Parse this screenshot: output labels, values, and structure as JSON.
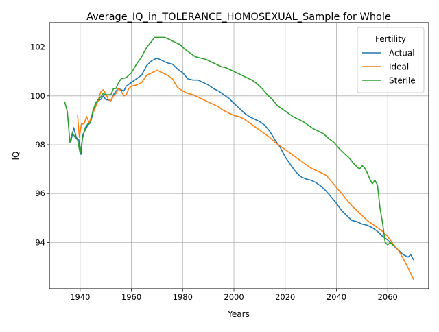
{
  "chart_data": {
    "type": "line",
    "title": "Average_IQ_in_TOLERANCE_HOMOSEXUAL_Sample for Whole",
    "xlabel": "Years",
    "ylabel": "IQ",
    "xlim": [
      1928,
      2076
    ],
    "ylim": [
      92.1,
      103.0
    ],
    "xticks": [
      1940,
      1960,
      1980,
      2000,
      2020,
      2040,
      2060
    ],
    "yticks": [
      94,
      96,
      98,
      100,
      102
    ],
    "grid": true,
    "legend": {
      "title": "Fertility",
      "position": "top-right"
    },
    "series": [
      {
        "name": "Actual",
        "color": "#1f77b4",
        "points": [
          [
            1936.5,
            98.2
          ],
          [
            1937.5,
            98.7
          ],
          [
            1938.5,
            98.3
          ],
          [
            1939.5,
            98.2
          ],
          [
            1940.3,
            97.6
          ],
          [
            1941,
            98.4
          ],
          [
            1942,
            98.6
          ],
          [
            1943,
            98.8
          ],
          [
            1944,
            98.9
          ],
          [
            1945,
            99.3
          ],
          [
            1946,
            99.6
          ],
          [
            1947,
            99.8
          ],
          [
            1948,
            99.85
          ],
          [
            1949,
            100.0
          ],
          [
            1950,
            99.85
          ],
          [
            1952,
            99.8
          ],
          [
            1953,
            100.05
          ],
          [
            1954,
            100.2
          ],
          [
            1955,
            100.3
          ],
          [
            1956,
            100.25
          ],
          [
            1957,
            100.2
          ],
          [
            1958,
            100.4
          ],
          [
            1960,
            100.55
          ],
          [
            1962,
            100.7
          ],
          [
            1964,
            100.85
          ],
          [
            1966,
            101.25
          ],
          [
            1968,
            101.45
          ],
          [
            1970,
            101.55
          ],
          [
            1972,
            101.45
          ],
          [
            1974,
            101.35
          ],
          [
            1976,
            101.3
          ],
          [
            1978,
            101.1
          ],
          [
            1980,
            100.95
          ],
          [
            1982,
            100.7
          ],
          [
            1984,
            100.65
          ],
          [
            1986,
            100.65
          ],
          [
            1988,
            100.55
          ],
          [
            1990,
            100.45
          ],
          [
            1992,
            100.3
          ],
          [
            1994,
            100.2
          ],
          [
            1996,
            100.05
          ],
          [
            1998,
            99.9
          ],
          [
            2000,
            99.7
          ],
          [
            2002,
            99.5
          ],
          [
            2004,
            99.3
          ],
          [
            2006,
            99.15
          ],
          [
            2008,
            99.05
          ],
          [
            2010,
            98.95
          ],
          [
            2012,
            98.8
          ],
          [
            2014,
            98.55
          ],
          [
            2016,
            98.2
          ],
          [
            2018,
            97.9
          ],
          [
            2020,
            97.5
          ],
          [
            2022,
            97.2
          ],
          [
            2024,
            96.9
          ],
          [
            2026,
            96.7
          ],
          [
            2028,
            96.6
          ],
          [
            2030,
            96.55
          ],
          [
            2032,
            96.45
          ],
          [
            2034,
            96.3
          ],
          [
            2036,
            96.1
          ],
          [
            2038,
            95.85
          ],
          [
            2040,
            95.6
          ],
          [
            2042,
            95.3
          ],
          [
            2044,
            95.1
          ],
          [
            2046,
            94.9
          ],
          [
            2048,
            94.85
          ],
          [
            2050,
            94.75
          ],
          [
            2052,
            94.7
          ],
          [
            2054,
            94.6
          ],
          [
            2056,
            94.45
          ],
          [
            2058,
            94.25
          ],
          [
            2060,
            94.1
          ],
          [
            2062,
            93.9
          ],
          [
            2064,
            93.7
          ],
          [
            2066,
            93.5
          ],
          [
            2068,
            93.4
          ],
          [
            2069,
            93.5
          ],
          [
            2070,
            93.3
          ]
        ]
      },
      {
        "name": "Ideal",
        "color": "#ff7f0e",
        "points": [
          [
            1939,
            99.2
          ],
          [
            1939.7,
            98.3
          ],
          [
            1940.5,
            98.85
          ],
          [
            1941.5,
            98.85
          ],
          [
            1942.5,
            99.15
          ],
          [
            1943.5,
            98.9
          ],
          [
            1945,
            99.3
          ],
          [
            1946,
            99.55
          ],
          [
            1947,
            99.8
          ],
          [
            1948,
            100.15
          ],
          [
            1949,
            100.25
          ],
          [
            1950,
            100.1
          ],
          [
            1951,
            99.85
          ],
          [
            1952,
            99.8
          ],
          [
            1953,
            100.0
          ],
          [
            1954,
            100.1
          ],
          [
            1955,
            100.3
          ],
          [
            1956,
            100.2
          ],
          [
            1957,
            100.0
          ],
          [
            1958,
            100.05
          ],
          [
            1959,
            100.3
          ],
          [
            1960,
            100.4
          ],
          [
            1962,
            100.45
          ],
          [
            1964,
            100.55
          ],
          [
            1966,
            100.85
          ],
          [
            1968,
            100.95
          ],
          [
            1970,
            101.05
          ],
          [
            1972,
            100.95
          ],
          [
            1974,
            100.85
          ],
          [
            1976,
            100.7
          ],
          [
            1978,
            100.35
          ],
          [
            1980,
            100.2
          ],
          [
            1982,
            100.1
          ],
          [
            1984,
            100.05
          ],
          [
            1986,
            99.95
          ],
          [
            1988,
            99.85
          ],
          [
            1990,
            99.75
          ],
          [
            1992,
            99.65
          ],
          [
            1994,
            99.55
          ],
          [
            1996,
            99.4
          ],
          [
            1998,
            99.3
          ],
          [
            2000,
            99.2
          ],
          [
            2002,
            99.15
          ],
          [
            2004,
            99.05
          ],
          [
            2006,
            98.9
          ],
          [
            2008,
            98.75
          ],
          [
            2010,
            98.6
          ],
          [
            2012,
            98.45
          ],
          [
            2014,
            98.3
          ],
          [
            2016,
            98.1
          ],
          [
            2018,
            97.95
          ],
          [
            2020,
            97.8
          ],
          [
            2022,
            97.65
          ],
          [
            2024,
            97.5
          ],
          [
            2026,
            97.35
          ],
          [
            2028,
            97.2
          ],
          [
            2030,
            97.05
          ],
          [
            2032,
            96.95
          ],
          [
            2034,
            96.85
          ],
          [
            2036,
            96.75
          ],
          [
            2038,
            96.5
          ],
          [
            2040,
            96.25
          ],
          [
            2042,
            96.0
          ],
          [
            2044,
            95.75
          ],
          [
            2046,
            95.5
          ],
          [
            2048,
            95.3
          ],
          [
            2050,
            95.1
          ],
          [
            2052,
            94.9
          ],
          [
            2054,
            94.75
          ],
          [
            2056,
            94.6
          ],
          [
            2058,
            94.45
          ],
          [
            2060,
            94.25
          ],
          [
            2062,
            93.95
          ],
          [
            2064,
            93.7
          ],
          [
            2066,
            93.35
          ],
          [
            2068,
            92.95
          ],
          [
            2070,
            92.5
          ]
        ]
      },
      {
        "name": "Sterile",
        "color": "#2ca02c",
        "points": [
          [
            1934,
            99.75
          ],
          [
            1935,
            99.35
          ],
          [
            1936,
            98.1
          ],
          [
            1937,
            98.5
          ],
          [
            1938,
            98.3
          ],
          [
            1939,
            98.2
          ],
          [
            1940,
            97.65
          ],
          [
            1941,
            98.3
          ],
          [
            1942,
            98.7
          ],
          [
            1943,
            98.85
          ],
          [
            1944,
            98.9
          ],
          [
            1945,
            99.4
          ],
          [
            1946,
            99.7
          ],
          [
            1947,
            99.85
          ],
          [
            1948,
            99.95
          ],
          [
            1949,
            100.1
          ],
          [
            1950,
            100.05
          ],
          [
            1952,
            100.05
          ],
          [
            1953,
            100.3
          ],
          [
            1954,
            100.3
          ],
          [
            1955,
            100.55
          ],
          [
            1956,
            100.7
          ],
          [
            1958,
            100.75
          ],
          [
            1960,
            100.95
          ],
          [
            1962,
            101.3
          ],
          [
            1964,
            101.6
          ],
          [
            1966,
            102.0
          ],
          [
            1968,
            102.25
          ],
          [
            1969,
            102.4
          ],
          [
            1971,
            102.4
          ],
          [
            1973,
            102.4
          ],
          [
            1975,
            102.3
          ],
          [
            1977,
            102.2
          ],
          [
            1979,
            102.1
          ],
          [
            1981,
            101.9
          ],
          [
            1983,
            101.75
          ],
          [
            1985,
            101.6
          ],
          [
            1987,
            101.55
          ],
          [
            1989,
            101.5
          ],
          [
            1991,
            101.4
          ],
          [
            1993,
            101.3
          ],
          [
            1995,
            101.2
          ],
          [
            1997,
            101.15
          ],
          [
            1999,
            101.05
          ],
          [
            2001,
            100.95
          ],
          [
            2003,
            100.85
          ],
          [
            2005,
            100.75
          ],
          [
            2007,
            100.65
          ],
          [
            2009,
            100.5
          ],
          [
            2011,
            100.3
          ],
          [
            2013,
            100.05
          ],
          [
            2015,
            99.85
          ],
          [
            2017,
            99.6
          ],
          [
            2019,
            99.45
          ],
          [
            2021,
            99.3
          ],
          [
            2023,
            99.15
          ],
          [
            2025,
            99.05
          ],
          [
            2027,
            98.95
          ],
          [
            2029,
            98.8
          ],
          [
            2031,
            98.65
          ],
          [
            2033,
            98.55
          ],
          [
            2035,
            98.45
          ],
          [
            2037,
            98.25
          ],
          [
            2039,
            98.1
          ],
          [
            2041,
            97.85
          ],
          [
            2043,
            97.65
          ],
          [
            2045,
            97.45
          ],
          [
            2047,
            97.2
          ],
          [
            2049,
            97.0
          ],
          [
            2050,
            97.15
          ],
          [
            2051,
            97.05
          ],
          [
            2052,
            96.85
          ],
          [
            2053,
            96.6
          ],
          [
            2054,
            96.4
          ],
          [
            2055,
            96.55
          ],
          [
            2056,
            96.35
          ],
          [
            2057,
            95.4
          ],
          [
            2058,
            94.8
          ],
          [
            2059,
            94.0
          ],
          [
            2060,
            93.9
          ],
          [
            2061,
            94.0
          ],
          [
            2062,
            93.9
          ]
        ]
      }
    ]
  }
}
